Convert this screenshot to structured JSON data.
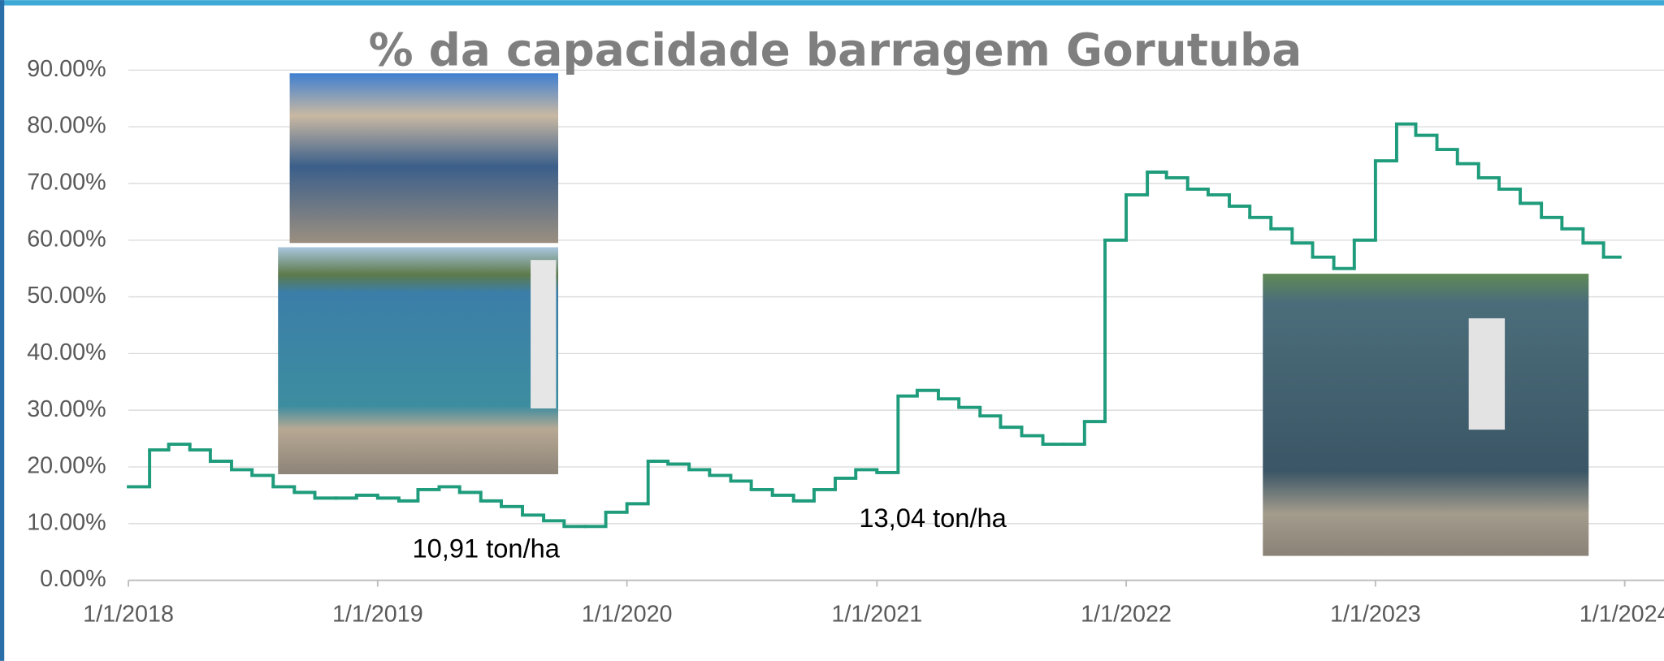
{
  "chart_data": {
    "type": "step",
    "title": "% da capacidade barragem Gorutuba",
    "annotations": [
      "10,91 ton/ha",
      "13,04 ton/ha"
    ],
    "color": "#1f9c7c",
    "grid": true,
    "xlim": [
      "2018-01-01",
      "2024-01-01"
    ],
    "xticks": [
      {
        "value": "2018-01-01",
        "label": "1/1/2018"
      },
      {
        "value": "2019-01-01",
        "label": "1/1/2019"
      },
      {
        "value": "2020-01-01",
        "label": "1/1/2020"
      },
      {
        "value": "2021-01-01",
        "label": "1/1/2021"
      },
      {
        "value": "2022-01-01",
        "label": "1/1/2022"
      },
      {
        "value": "2023-01-01",
        "label": "1/1/2023"
      },
      {
        "value": "2024-01-01",
        "label": "1/1/2024"
      }
    ],
    "ylim": [
      0,
      90
    ],
    "yticks": [
      {
        "value": 0,
        "label": "0.00%"
      },
      {
        "value": 10,
        "label": "10.00%"
      },
      {
        "value": 20,
        "label": "20.00%"
      },
      {
        "value": 30,
        "label": "30.00%"
      },
      {
        "value": 40,
        "label": "40.00%"
      },
      {
        "value": 50,
        "label": "50.00%"
      },
      {
        "value": 60,
        "label": "60.00%"
      },
      {
        "value": 70,
        "label": "70.00%"
      },
      {
        "value": 80,
        "label": "80.00%"
      },
      {
        "value": 90,
        "label": "90.00%"
      }
    ],
    "x": [
      "2018-01-01",
      "2018-02-01",
      "2018-03-01",
      "2018-04-01",
      "2018-05-01",
      "2018-06-01",
      "2018-07-01",
      "2018-08-01",
      "2018-09-01",
      "2018-10-01",
      "2018-11-01",
      "2018-12-01",
      "2019-01-01",
      "2019-02-01",
      "2019-03-01",
      "2019-04-01",
      "2019-05-01",
      "2019-06-01",
      "2019-07-01",
      "2019-08-01",
      "2019-09-01",
      "2019-10-01",
      "2019-11-01",
      "2019-12-01",
      "2020-01-01",
      "2020-02-01",
      "2020-03-01",
      "2020-04-01",
      "2020-05-01",
      "2020-06-01",
      "2020-07-01",
      "2020-08-01",
      "2020-09-01",
      "2020-10-01",
      "2020-11-01",
      "2020-12-01",
      "2021-01-01",
      "2021-02-01",
      "2021-03-01",
      "2021-04-01",
      "2021-05-01",
      "2021-06-01",
      "2021-07-01",
      "2021-08-01",
      "2021-09-01",
      "2021-10-01",
      "2021-11-01",
      "2021-12-01",
      "2022-01-01",
      "2022-02-01",
      "2022-03-01",
      "2022-04-01",
      "2022-05-01",
      "2022-06-01",
      "2022-07-01",
      "2022-08-01",
      "2022-09-01",
      "2022-10-01",
      "2022-11-01",
      "2022-12-01",
      "2023-01-01",
      "2023-02-01",
      "2023-03-01",
      "2023-04-01",
      "2023-05-01",
      "2023-06-01",
      "2023-07-01",
      "2023-08-01",
      "2023-09-01",
      "2023-10-01",
      "2023-11-01",
      "2023-12-01"
    ],
    "values": [
      16.5,
      23,
      24,
      23,
      21,
      19.5,
      18.5,
      16.5,
      15.5,
      14.5,
      14.5,
      15,
      14.5,
      14,
      16,
      16.5,
      15.5,
      14,
      13,
      11.5,
      10.5,
      9.5,
      9.5,
      12,
      13.5,
      21,
      20.5,
      19.5,
      18.5,
      17.5,
      16,
      15,
      14,
      16,
      18,
      19.5,
      19,
      32.5,
      33.5,
      32,
      30.5,
      29,
      27,
      25.5,
      24,
      24,
      28,
      60,
      68,
      72,
      71,
      69,
      68,
      66,
      64,
      62,
      59.5,
      57,
      55,
      60,
      74,
      80.5,
      78.5,
      76,
      73.5,
      71,
      69,
      66.5,
      64,
      62,
      59.5,
      57
    ]
  }
}
